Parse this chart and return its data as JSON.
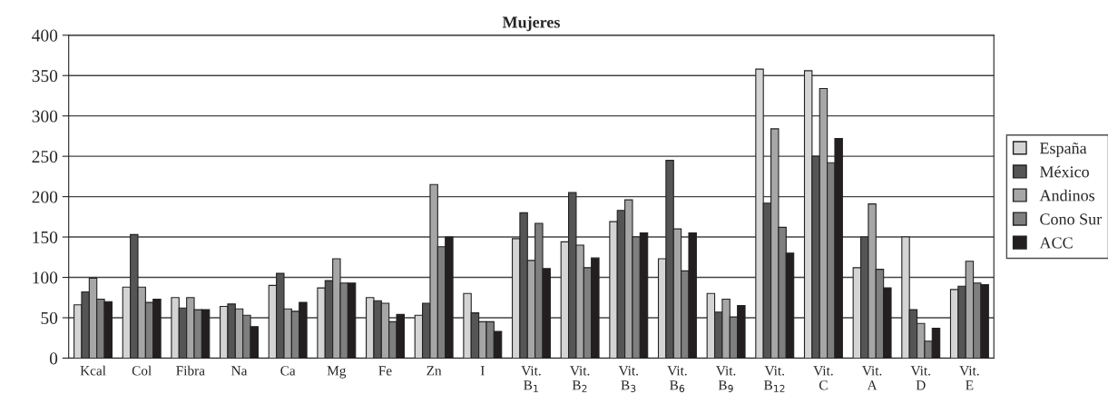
{
  "chart_data": {
    "type": "bar",
    "title": "Mujeres",
    "categories": [
      "Kcal",
      "Col",
      "Fibra",
      "Na",
      "Ca",
      "Mg",
      "Fe",
      "Zn",
      "I",
      "Vit.\nB$_{1}$",
      "Vit.\nB$_{2}$",
      "Vit.\nB$_{3}$",
      "Vit.\nB$_{6}$",
      "Vit.\nB$_{9}$",
      "Vit.\nB$_{12}$",
      "Vit.\nC",
      "Vit.\nA",
      "Vit.\nD",
      "Vit.\nE"
    ],
    "series": [
      {
        "name": "España",
        "color": "#d4d4d4",
        "values": [
          66,
          88,
          75,
          64,
          90,
          87,
          75,
          53,
          80,
          148,
          144,
          169,
          123,
          80,
          358,
          356,
          112,
          150,
          85
        ]
      },
      {
        "name": "México",
        "color": "#555555",
        "values": [
          82,
          153,
          62,
          67,
          105,
          96,
          71,
          68,
          56,
          180,
          205,
          183,
          245,
          57,
          192,
          250,
          150,
          60,
          89
        ]
      },
      {
        "name": "Andinos",
        "color": "#a6a6a6",
        "values": [
          99,
          88,
          75,
          61,
          61,
          123,
          68,
          215,
          45,
          121,
          140,
          196,
          160,
          73,
          284,
          334,
          191,
          43,
          120
        ]
      },
      {
        "name": "Cono Sur",
        "color": "#7f7f7f",
        "values": [
          73,
          69,
          60,
          53,
          58,
          93,
          45,
          138,
          45,
          167,
          112,
          150,
          108,
          51,
          162,
          242,
          110,
          21,
          93
        ]
      },
      {
        "name": "ACC",
        "color": "#231f20",
        "values": [
          70,
          73,
          60,
          39,
          69,
          93,
          54,
          150,
          33,
          111,
          124,
          155,
          155,
          65,
          130,
          272,
          87,
          37,
          91
        ]
      }
    ],
    "ylim": [
      0,
      400
    ],
    "yticks": [
      0,
      50,
      100,
      150,
      200,
      250,
      300,
      350,
      400
    ],
    "grid": "y",
    "legend": "right"
  }
}
